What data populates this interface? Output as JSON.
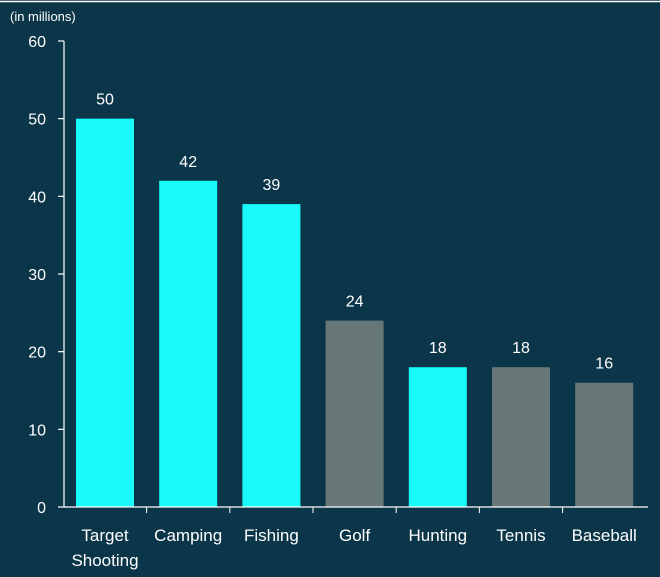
{
  "chart_data": {
    "type": "bar",
    "unit_label": "(in millions)",
    "categories": [
      "Target Shooting",
      "Camping",
      "Fishing",
      "Golf",
      "Hunting",
      "Tennis",
      "Baseball"
    ],
    "category_lines": [
      [
        "Target",
        "Shooting"
      ],
      [
        "Camping"
      ],
      [
        "Fishing"
      ],
      [
        "Golf"
      ],
      [
        "Hunting"
      ],
      [
        "Tennis"
      ],
      [
        "Baseball"
      ]
    ],
    "values": [
      50,
      42,
      39,
      24,
      18,
      18,
      16
    ],
    "data_labels": [
      "50",
      "42",
      "39",
      "24",
      "18",
      "18",
      "16"
    ],
    "bar_colors": [
      "#19fbfb",
      "#19fbfb",
      "#19fbfb",
      "#677778",
      "#19fbfb",
      "#677778",
      "#677778"
    ],
    "ylim": [
      0,
      60
    ],
    "yticks": [
      0,
      10,
      20,
      30,
      40,
      50,
      60
    ],
    "grid": false,
    "legend": "none"
  },
  "colors": {
    "background": "#0b3548",
    "highlight_bar": "#19fbfb",
    "other_bar": "#677778",
    "axis": "#ffffff",
    "text": "#ffffff"
  }
}
